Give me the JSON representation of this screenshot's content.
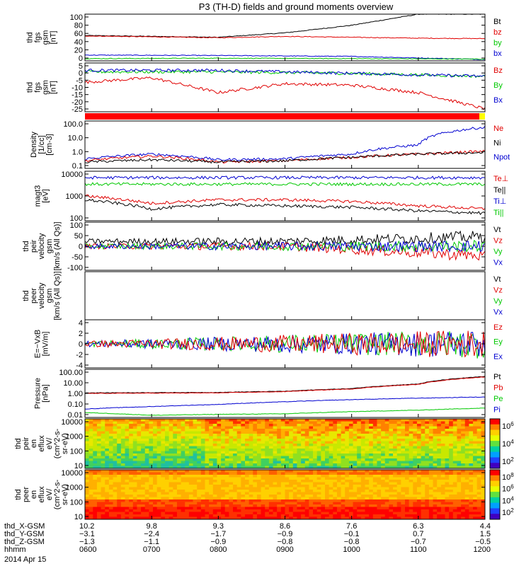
{
  "title": "P3 (TH-D) fields and ground moments overview",
  "date_label": "2014 Apr 15",
  "ephemeris": {
    "rows": [
      {
        "name": "thd_X-GSM",
        "values": [
          "10.2",
          "9.8",
          "9.3",
          "8.6",
          "7.6",
          "6.3",
          "4.4"
        ]
      },
      {
        "name": "thd_Y-GSM",
        "values": [
          "−3.1",
          "−2.4",
          "−1.7",
          "−0.9",
          "−0.1",
          "0.7",
          "1.5"
        ]
      },
      {
        "name": "thd_Z-GSM",
        "values": [
          "−1.3",
          "−1.1",
          "−0.9",
          "−0.8",
          "−0.8",
          "−0.7",
          "−0.5"
        ]
      },
      {
        "name": "hhmm",
        "values": [
          "0600",
          "0700",
          "0800",
          "0900",
          "1000",
          "1100",
          "1200"
        ]
      }
    ]
  },
  "colors": {
    "black": "#000000",
    "red": "#e00000",
    "green": "#00c800",
    "blue": "#0000d0"
  },
  "chart_data": [
    {
      "type": "line",
      "ylabel": [
        "thd",
        "fgs",
        "gsm",
        "[nT]"
      ],
      "yticks": [
        "100",
        "80",
        "60",
        "40",
        "20",
        "0"
      ],
      "ylim": [
        -5,
        100
      ],
      "legend": [
        {
          "name": "Bt",
          "color": "#000000"
        },
        {
          "name": "bz",
          "color": "#e00000"
        },
        {
          "name": "by",
          "color": "#00c800"
        },
        {
          "name": "bx",
          "color": "#0000d0"
        }
      ],
      "series": [
        {
          "name": "Bt",
          "color": "#000000",
          "x": [
            "0600",
            "0800",
            "0900",
            "1000",
            "1100",
            "1200"
          ],
          "values": [
            52,
            48,
            58,
            75,
            100,
            100
          ]
        },
        {
          "name": "bz",
          "color": "#e00000",
          "x": [
            "0600",
            "0800",
            "0900",
            "1000",
            "1100",
            "1200"
          ],
          "values": [
            51,
            47,
            50,
            48,
            46,
            45
          ]
        },
        {
          "name": "bx",
          "color": "#0000d0",
          "x": [
            "0600",
            "0800",
            "1000",
            "1200"
          ],
          "values": [
            8,
            7,
            5,
            -2
          ]
        },
        {
          "name": "by",
          "color": "#00c800",
          "x": [
            "0600",
            "0800",
            "1000",
            "1200"
          ],
          "values": [
            0,
            1,
            0,
            -1
          ]
        }
      ]
    },
    {
      "type": "line",
      "ylabel": [
        "thd",
        "fgs",
        "gsm",
        "[nT]"
      ],
      "yticks": [
        "5",
        "0",
        "-5",
        "-10",
        "-15",
        "-20",
        "-25"
      ],
      "ylim": [
        -27,
        6
      ],
      "legend": [
        {
          "name": "Bz",
          "color": "#e00000"
        },
        {
          "name": "By",
          "color": "#00c800"
        },
        {
          "name": "Bx",
          "color": "#0000d0"
        }
      ],
      "series": [
        {
          "name": "Bz",
          "color": "#e00000",
          "x": [
            "0600",
            "0700",
            "0800",
            "0900",
            "1000",
            "1100",
            "1200"
          ],
          "values": [
            -7,
            -4,
            -14,
            -8,
            -9,
            -14,
            -25
          ]
        },
        {
          "name": "By",
          "color": "#00c800",
          "x": [
            "0600",
            "0800",
            "1000",
            "1200"
          ],
          "values": [
            0,
            0,
            -1,
            -3
          ]
        },
        {
          "name": "Bx",
          "color": "#0000d0",
          "x": [
            "0600",
            "0800",
            "1000",
            "1200"
          ],
          "values": [
            1,
            1,
            -1,
            -3
          ]
        }
      ]
    },
    {
      "type": "line",
      "ylabel": [
        "Density",
        "[1/cc]",
        "[cm-3]"
      ],
      "yticks": [
        "100.0",
        "10.0",
        "1.0",
        "0.1"
      ],
      "ylim": [
        0.1,
        100
      ],
      "yscale": "log",
      "legend": [
        {
          "name": "Ne",
          "color": "#e00000"
        },
        {
          "name": "Ni",
          "color": "#000000"
        },
        {
          "name": "Npot",
          "color": "#0000d0"
        }
      ],
      "series": [
        {
          "name": "Npot",
          "color": "#0000d0",
          "x": [
            "0600",
            "0700",
            "0800",
            "0900",
            "1000",
            "1100",
            "1200"
          ],
          "values": [
            0.4,
            0.8,
            0.35,
            0.4,
            0.8,
            3,
            40
          ]
        },
        {
          "name": "Ne",
          "color": "#e00000",
          "x": [
            "0600",
            "0700",
            "0800",
            "0900",
            "1000",
            "1100",
            "1200"
          ],
          "values": [
            0.3,
            0.6,
            0.25,
            0.3,
            0.5,
            0.8,
            1.2
          ]
        },
        {
          "name": "Ni",
          "color": "#000000",
          "x": [
            "0600",
            "0700",
            "0800",
            "0900",
            "1000",
            "1100",
            "1200"
          ],
          "values": [
            0.25,
            0.35,
            0.25,
            0.3,
            0.5,
            0.8,
            1.0
          ]
        }
      ]
    },
    {
      "type": "line",
      "ylabel": [
        "magt3",
        "[eV]"
      ],
      "yticks": [
        "10000",
        "1000",
        "100"
      ],
      "ylim": [
        100,
        10000
      ],
      "yscale": "log",
      "legend": [
        {
          "name": "Te⊥",
          "color": "#e00000"
        },
        {
          "name": "Te||",
          "color": "#000000"
        },
        {
          "name": "Ti⊥",
          "color": "#0000d0"
        },
        {
          "name": "Ti||",
          "color": "#00c800"
        }
      ],
      "series": [
        {
          "name": "Ti⊥",
          "color": "#0000d0",
          "x": [
            "0600",
            "0900",
            "1200"
          ],
          "values": [
            5500,
            5500,
            5500
          ]
        },
        {
          "name": "Ti||",
          "color": "#00c800",
          "x": [
            "0600",
            "0900",
            "1200"
          ],
          "values": [
            3000,
            3000,
            3000
          ]
        },
        {
          "name": "Te⊥",
          "color": "#e00000",
          "x": [
            "0600",
            "0700",
            "0800",
            "0900",
            "1000",
            "1100",
            "1200"
          ],
          "values": [
            1000,
            500,
            700,
            700,
            600,
            400,
            300
          ]
        },
        {
          "name": "Te||",
          "color": "#000000",
          "x": [
            "0600",
            "0700",
            "0800",
            "0900",
            "1000",
            "1100",
            "1200"
          ],
          "values": [
            700,
            300,
            450,
            400,
            350,
            250,
            200
          ]
        }
      ]
    },
    {
      "type": "line",
      "ylabel": [
        "thd",
        "peir",
        "velocity",
        "gsm",
        "[km/s (All Qs)]"
      ],
      "yticks": [
        "100",
        "50",
        "0",
        "-50",
        "-100"
      ],
      "ylim": [
        -100,
        100
      ],
      "legend": [
        {
          "name": "Vt",
          "color": "#000000"
        },
        {
          "name": "Vz",
          "color": "#e00000"
        },
        {
          "name": "Vy",
          "color": "#00c800"
        },
        {
          "name": "Vx",
          "color": "#0000d0"
        }
      ],
      "series": [
        {
          "name": "Vt",
          "color": "#000000",
          "x": [
            "0600",
            "0900",
            "1200"
          ],
          "values": [
            20,
            20,
            40
          ]
        },
        {
          "name": "Vz",
          "color": "#e00000",
          "x": [
            "0600",
            "0900",
            "1200"
          ],
          "values": [
            0,
            0,
            -40
          ]
        },
        {
          "name": "Vy",
          "color": "#00c800",
          "x": [
            "0600",
            "0900",
            "1200"
          ],
          "values": [
            0,
            0,
            0
          ]
        },
        {
          "name": "Vx",
          "color": "#0000d0",
          "x": [
            "0600",
            "0900",
            "1200"
          ],
          "values": [
            0,
            0,
            0
          ]
        }
      ]
    },
    {
      "type": "line",
      "ylabel": [
        "thd",
        "peer",
        "velocity",
        "gsm",
        "[km/s (All Qs)]"
      ],
      "yticks": [],
      "legend": [
        {
          "name": "Vt",
          "color": "#000000"
        },
        {
          "name": "Vz",
          "color": "#e00000"
        },
        {
          "name": "Vy",
          "color": "#00c800"
        },
        {
          "name": "Vx",
          "color": "#0000d0"
        }
      ],
      "series": []
    },
    {
      "type": "line",
      "ylabel": [
        "E=−VxB",
        "[mV/m]"
      ],
      "yticks": [
        "4",
        "2",
        "0",
        "-2",
        "-4"
      ],
      "ylim": [
        -4,
        4
      ],
      "legend": [
        {
          "name": "Ez",
          "color": "#e00000"
        },
        {
          "name": "Ey",
          "color": "#00c800"
        },
        {
          "name": "Ex",
          "color": "#0000d0"
        }
      ],
      "series": [
        {
          "name": "Ey",
          "color": "#00c800",
          "x": [
            "0600",
            "0900",
            "1200"
          ],
          "values": [
            0,
            0,
            0
          ]
        },
        {
          "name": "Ex",
          "color": "#0000d0",
          "x": [
            "0600",
            "0900",
            "1200"
          ],
          "values": [
            0,
            0,
            0
          ]
        },
        {
          "name": "Ez",
          "color": "#e00000",
          "x": [
            "0600",
            "0900",
            "1200"
          ],
          "values": [
            0,
            0,
            0
          ]
        }
      ]
    },
    {
      "type": "line",
      "ylabel": [
        "Pressure",
        "[nPa]"
      ],
      "yticks": [
        "100.00",
        "10.00",
        "1.00",
        "0.10",
        "0.01"
      ],
      "ylim": [
        0.01,
        100
      ],
      "yscale": "log",
      "legend": [
        {
          "name": "Pt",
          "color": "#000000"
        },
        {
          "name": "Pb",
          "color": "#e00000"
        },
        {
          "name": "Pe",
          "color": "#00c800"
        },
        {
          "name": "Pi",
          "color": "#0000d0"
        }
      ],
      "series": [
        {
          "name": "Pt",
          "color": "#000000",
          "x": [
            "0600",
            "0800",
            "0900",
            "1000",
            "1100",
            "1200"
          ],
          "values": [
            1.1,
            1.2,
            1.5,
            2.5,
            6,
            25
          ]
        },
        {
          "name": "Pb",
          "color": "#e00000",
          "x": [
            "0600",
            "0800",
            "0900",
            "1000",
            "1100",
            "1200"
          ],
          "values": [
            1.0,
            1.1,
            1.4,
            2.3,
            5.5,
            23
          ]
        },
        {
          "name": "Pi",
          "color": "#0000d0",
          "x": [
            "0600",
            "0700",
            "0800",
            "0900",
            "1000",
            "1100",
            "1200"
          ],
          "values": [
            0.05,
            0.08,
            0.12,
            0.2,
            0.3,
            0.4,
            0.5
          ]
        },
        {
          "name": "Pe",
          "color": "#00c800",
          "x": [
            "0600",
            "0700",
            "0800",
            "0900",
            "1000",
            "1100",
            "1200"
          ],
          "values": [
            0.025,
            0.015,
            0.018,
            0.02,
            0.03,
            0.04,
            0.06
          ]
        }
      ]
    },
    {
      "type": "heatmap",
      "ylabel": [
        "thd",
        "peir",
        "en",
        "eflux",
        "eV/",
        "(cm^2-s-",
        "sr-eV)"
      ],
      "yticks": [
        "10000",
        "1000",
        "100",
        "10"
      ],
      "ylim": [
        6,
        20000
      ],
      "yscale": "log",
      "colorbar_ticks": [
        "10^6",
        "10^4",
        "10^2"
      ]
    },
    {
      "type": "heatmap",
      "ylabel": [
        "thd",
        "peer",
        "en",
        "eflux",
        "eV/",
        "(cm^2-s-",
        "sr-eV)"
      ],
      "yticks": [
        "10000",
        "1000",
        "100",
        "10"
      ],
      "ylim": [
        6,
        20000
      ],
      "yscale": "log",
      "colorbar_ticks": [
        "10^8",
        "10^6",
        "10^4",
        "10^2"
      ]
    }
  ]
}
